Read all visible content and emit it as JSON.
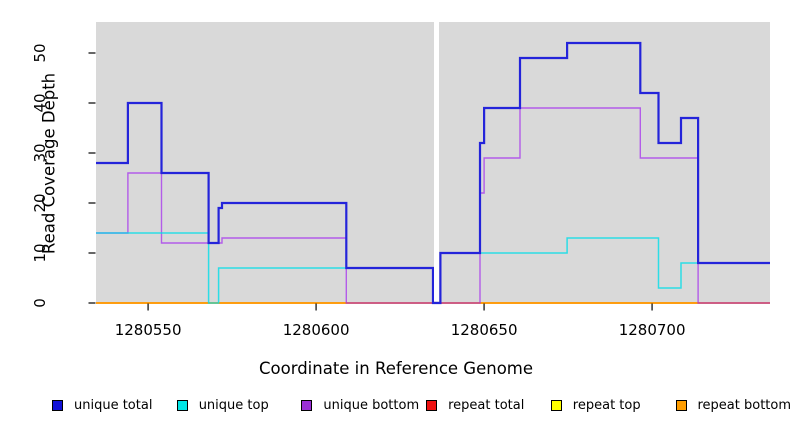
{
  "chart_data": {
    "type": "line",
    "subtype": "step-coverage-plot",
    "title": "",
    "xlabel": "Coordinate in Reference Genome",
    "ylabel": "Read Coverage Depth",
    "xlim": [
      1280534.5,
      1280735.1
    ],
    "ylim": [
      0,
      56.2
    ],
    "x_ticks": [
      1280550,
      1280600,
      1280650,
      1280700
    ],
    "x_tick_labels": [
      "1280550",
      "1280600",
      "1280650",
      "1280700"
    ],
    "y_ticks": [
      0,
      10,
      20,
      30,
      40,
      50
    ],
    "y_tick_labels": [
      "0",
      "10",
      "20",
      "30",
      "40",
      "50"
    ],
    "grid": false,
    "panel_bg": "#d9d9d9",
    "gap_region": {
      "x_start": 1280635.1,
      "x_end": 1280636.6,
      "color": "#ffffff"
    },
    "legend_position": "bottom",
    "series": [
      {
        "name": "repeat total",
        "color": "#dd0000",
        "width": 1.2,
        "opacity": 1,
        "points": [
          [
            1280534.5,
            0
          ]
        ]
      },
      {
        "name": "repeat top",
        "color": "#ffee00",
        "width": 1.2,
        "opacity": 1,
        "points": [
          [
            1280534.5,
            0
          ]
        ]
      },
      {
        "name": "repeat bottom",
        "color": "#ff9800",
        "width": 1.7,
        "opacity": 1,
        "points": [
          [
            1280534.5,
            0
          ]
        ]
      },
      {
        "name": "unique bottom",
        "color": "#a020f0",
        "width": 1.4,
        "opacity": 0.68,
        "points": [
          [
            1280534.5,
            14
          ],
          [
            1280544,
            26
          ],
          [
            1280554,
            12
          ],
          [
            1280572,
            13
          ],
          [
            1280609,
            0
          ],
          [
            1280648.8,
            22
          ],
          [
            1280650,
            29
          ],
          [
            1280660.7,
            39
          ],
          [
            1280696.5,
            29
          ],
          [
            1280713.7,
            0
          ]
        ]
      },
      {
        "name": "unique top",
        "color": "#00dde8",
        "width": 1.5,
        "opacity": 0.8,
        "points": [
          [
            1280534.5,
            14
          ],
          [
            1280568,
            0
          ],
          [
            1280571,
            7
          ],
          [
            1280634.8,
            0
          ],
          [
            1280637,
            10
          ],
          [
            1280674.7,
            13
          ],
          [
            1280701.9,
            3
          ],
          [
            1280708.6,
            8
          ]
        ]
      },
      {
        "name": "unique total",
        "color": "#2424da",
        "width": 2.2,
        "opacity": 1,
        "points": [
          [
            1280534.5,
            28
          ],
          [
            1280544,
            40
          ],
          [
            1280554,
            26
          ],
          [
            1280568,
            12
          ],
          [
            1280571,
            19
          ],
          [
            1280572,
            20
          ],
          [
            1280609,
            7
          ],
          [
            1280634.8,
            0
          ],
          [
            1280637,
            10
          ],
          [
            1280648.8,
            32
          ],
          [
            1280650,
            39
          ],
          [
            1280660.7,
            49
          ],
          [
            1280674.7,
            52
          ],
          [
            1280696.5,
            42
          ],
          [
            1280701.9,
            32
          ],
          [
            1280708.6,
            37
          ],
          [
            1280713.7,
            8
          ]
        ]
      }
    ]
  },
  "legend": {
    "items": [
      {
        "label": "unique total",
        "color": "#1111d6"
      },
      {
        "label": "unique top",
        "color": "#00e5e5"
      },
      {
        "label": "unique bottom",
        "color": "#9b2fd6"
      },
      {
        "label": "repeat total",
        "color": "#ee1111"
      },
      {
        "label": "repeat top",
        "color": "#ffff00"
      },
      {
        "label": "repeat bottom",
        "color": "#ff9d00"
      }
    ]
  }
}
